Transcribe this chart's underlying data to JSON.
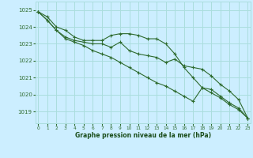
{
  "x": [
    0,
    1,
    2,
    3,
    4,
    5,
    6,
    7,
    8,
    9,
    10,
    11,
    12,
    13,
    14,
    15,
    16,
    17,
    18,
    19,
    20,
    21,
    22,
    23
  ],
  "line1": [
    1024.9,
    1024.6,
    1024.0,
    1023.8,
    1023.4,
    1023.2,
    1023.2,
    1023.2,
    1023.5,
    1023.6,
    1023.6,
    1023.5,
    1023.3,
    1023.3,
    1023.0,
    1022.4,
    1021.6,
    1021.0,
    1020.4,
    1020.3,
    1019.9,
    1019.5,
    1019.2,
    1018.6
  ],
  "line2": [
    1024.9,
    1024.4,
    1023.8,
    1023.4,
    1023.2,
    1023.1,
    1023.0,
    1023.0,
    1022.8,
    1023.1,
    1022.6,
    1022.4,
    1022.3,
    1022.2,
    1021.9,
    1022.1,
    1021.7,
    1021.6,
    1021.5,
    1021.1,
    1020.6,
    1020.2,
    1019.7,
    1018.6
  ],
  "line3": [
    1024.9,
    1024.4,
    1023.8,
    1023.3,
    1023.1,
    1022.9,
    1022.6,
    1022.4,
    1022.2,
    1021.9,
    1021.6,
    1021.3,
    1021.0,
    1020.7,
    1020.5,
    1020.2,
    1019.9,
    1019.6,
    1020.4,
    1020.1,
    1019.8,
    1019.4,
    1019.1,
    1018.6
  ],
  "bg_color": "#cceeff",
  "grid_color": "#aadddd",
  "line_color": "#2d6a2d",
  "xlabel": "Graphe pression niveau de la mer (hPa)",
  "xlabel_color": "#1a4d1a",
  "ylabel_ticks": [
    1019,
    1020,
    1021,
    1022,
    1023,
    1024,
    1025
  ],
  "xlim": [
    -0.3,
    23.3
  ],
  "ylim": [
    1018.3,
    1025.5
  ],
  "markersize": 2.8,
  "linewidth": 0.8
}
